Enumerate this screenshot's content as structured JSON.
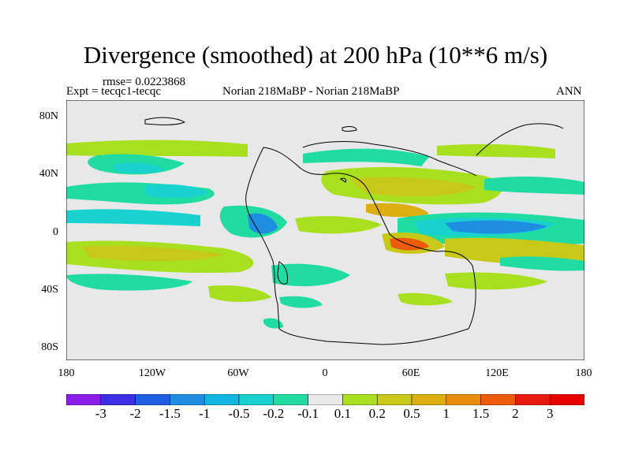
{
  "title": "Divergence (smoothed) at 200 hPa (10**6 m/s)",
  "rmse_text": "rmse= 0.0223868",
  "expt_text": "Expt = tecqc1-tecqc",
  "comparison_text": "Norian 218MaBP - Norian 218MaBP",
  "season": "ANN",
  "lat_ticks": [
    "80N",
    "40N",
    "0",
    "40S",
    "80S"
  ],
  "lon_ticks": [
    "180",
    "120W",
    "60W",
    "0",
    "60E",
    "120E",
    "180"
  ],
  "colorbar": {
    "labels": [
      "-3",
      "-2",
      "-1.5",
      "-1",
      "-0.5",
      "-0.2",
      "-0.1",
      "0.1",
      "0.2",
      "0.5",
      "1",
      "1.5",
      "2",
      "3"
    ],
    "colors": [
      "#8a1ee8",
      "#3a2ee0",
      "#1f5ee0",
      "#1e8fe0",
      "#10b5e0",
      "#18d2d0",
      "#20dca0",
      "#e8e8e8",
      "#a8e020",
      "#c8c818",
      "#dcae10",
      "#e88c0c",
      "#ec5a0c",
      "#e81a10",
      "#e80000"
    ]
  }
}
